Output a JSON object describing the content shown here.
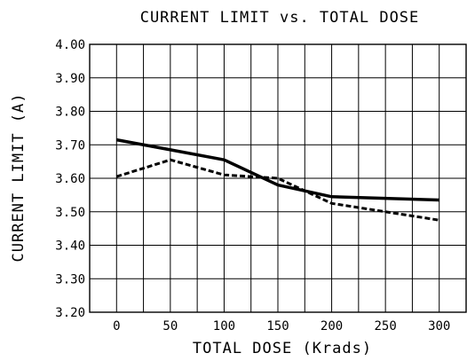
{
  "chart_data": {
    "type": "line",
    "title": "CURRENT LIMIT vs. TOTAL DOSE",
    "xlabel": "TOTAL DOSE (Krads)",
    "ylabel": "CURRENT LIMIT (A)",
    "xlim": [
      -25,
      325
    ],
    "ylim": [
      3.2,
      4.0
    ],
    "x_ticks": [
      0,
      50,
      100,
      150,
      200,
      250,
      300
    ],
    "x_tick_labels": [
      "0",
      "50",
      "100",
      "150",
      "200",
      "250",
      "300"
    ],
    "y_ticks": [
      3.2,
      3.3,
      3.4,
      3.5,
      3.6,
      3.7,
      3.8,
      3.9,
      4.0
    ],
    "y_tick_labels": [
      "3.20",
      "3.30",
      "3.40",
      "3.50",
      "3.60",
      "3.70",
      "3.80",
      "3.90",
      "4.00"
    ],
    "grid": true,
    "series": [
      {
        "style": "solid",
        "color": "#000000",
        "x": [
          0,
          50,
          100,
          150,
          200,
          300
        ],
        "y": [
          3.715,
          3.685,
          3.655,
          3.58,
          3.545,
          3.535
        ]
      },
      {
        "style": "dashed",
        "color": "#000000",
        "x": [
          0,
          50,
          100,
          150,
          200,
          300
        ],
        "y": [
          3.605,
          3.655,
          3.61,
          3.6,
          3.525,
          3.475
        ]
      }
    ]
  }
}
